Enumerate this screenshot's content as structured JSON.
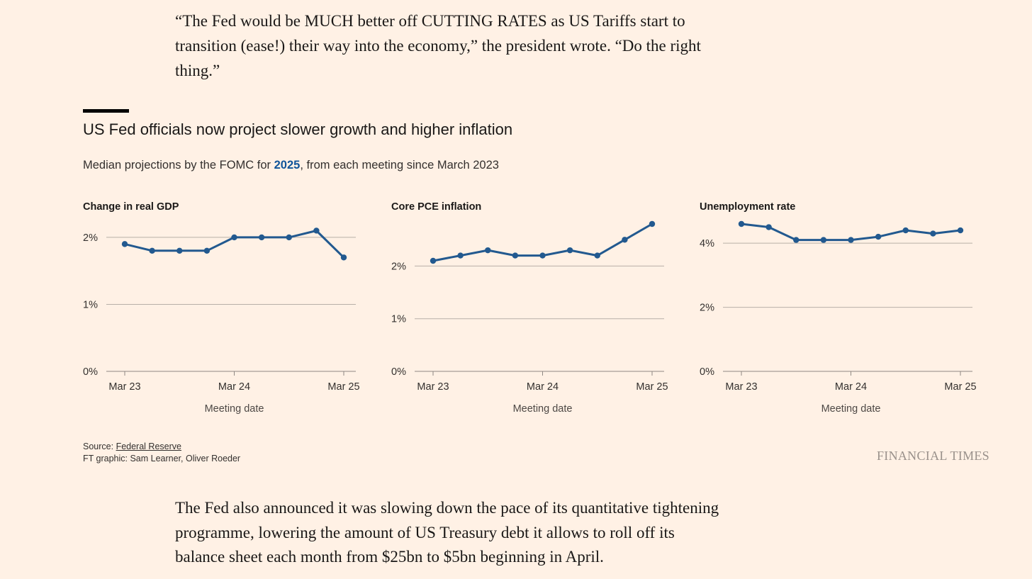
{
  "quote_text": "“The Fed would be MUCH better off CUTTING RATES as US Tariffs start to transition (ease!) their way into the economy,” the president wrote. “Do the right thing.”",
  "graphic": {
    "title": "US Fed officials now project slower growth and higher inflation",
    "subtitle_prefix": "Median projections by the FOMC for ",
    "subtitle_highlight": "2025",
    "subtitle_suffix": ", from each meeting since March 2023",
    "highlight_color": "#0f5499",
    "line_color": "#22598f",
    "background_color": "#fff1e5"
  },
  "chart_data": [
    {
      "type": "line",
      "title": "Change in real GDP",
      "xlabel": "Meeting date",
      "ylabel": "",
      "x": [
        "Mar 23",
        "Jun 23",
        "Sep 23",
        "Dec 23",
        "Mar 24",
        "Jun 24",
        "Sep 24",
        "Dec 24",
        "Mar 25"
      ],
      "x_tick_labels": [
        "Mar 23",
        "Mar 24",
        "Mar 25"
      ],
      "values": [
        1.9,
        1.8,
        1.8,
        1.8,
        2.0,
        2.0,
        2.0,
        2.1,
        1.7
      ],
      "ylim": [
        0,
        2.2
      ],
      "y_ticks": [
        0,
        1,
        2
      ],
      "y_tick_labels": [
        "0%",
        "1%",
        "2%"
      ],
      "grid": true
    },
    {
      "type": "line",
      "title": "Core PCE inflation",
      "xlabel": "Meeting date",
      "ylabel": "",
      "x": [
        "Mar 23",
        "Jun 23",
        "Sep 23",
        "Dec 23",
        "Mar 24",
        "Jun 24",
        "Sep 24",
        "Dec 24",
        "Mar 25"
      ],
      "x_tick_labels": [
        "Mar 23",
        "Mar 24",
        "Mar 25"
      ],
      "values": [
        2.1,
        2.2,
        2.3,
        2.2,
        2.2,
        2.3,
        2.2,
        2.5,
        2.8
      ],
      "ylim": [
        0,
        2.8
      ],
      "y_ticks": [
        0,
        1,
        2
      ],
      "y_tick_labels": [
        "0%",
        "1%",
        "2%"
      ],
      "grid": true
    },
    {
      "type": "line",
      "title": "Unemployment rate",
      "xlabel": "Meeting date",
      "ylabel": "",
      "x": [
        "Mar 23",
        "Jun 23",
        "Sep 23",
        "Dec 23",
        "Mar 24",
        "Jun 24",
        "Sep 24",
        "Dec 24",
        "Mar 25"
      ],
      "x_tick_labels": [
        "Mar 23",
        "Mar 24",
        "Mar 25"
      ],
      "values": [
        4.6,
        4.5,
        4.1,
        4.1,
        4.1,
        4.2,
        4.4,
        4.3,
        4.4
      ],
      "ylim": [
        0,
        4.6
      ],
      "y_ticks": [
        0,
        2,
        4
      ],
      "y_tick_labels": [
        "0%",
        "2%",
        "4%"
      ],
      "grid": true
    }
  ],
  "source": {
    "prefix": "Source: ",
    "link_text": "Federal Reserve",
    "credit": "FT graphic: Sam Learner, Oliver Roeder"
  },
  "brand": "FINANCIAL TIMES",
  "body_text": "The Fed also announced it was slowing down the pace of its quantitative tightening programme, lowering the amount of US Treasury debt it allows to roll off its balance sheet each month from $25bn to $5bn beginning in April."
}
